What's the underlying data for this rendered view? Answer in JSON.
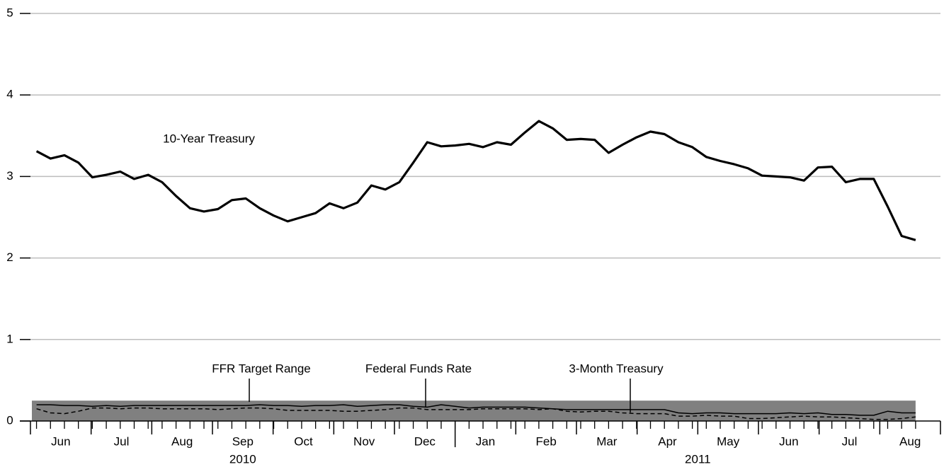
{
  "chart_data": {
    "type": "line",
    "xlim": [
      0,
      15
    ],
    "xticks": [
      0,
      1,
      2,
      3,
      4,
      5,
      6,
      7,
      8,
      9,
      10,
      11,
      12,
      13,
      14,
      15
    ],
    "month_labels": [
      "Jun",
      "Jul",
      "Aug",
      "Sep",
      "Oct",
      "Nov",
      "Dec",
      "Jan",
      "Feb",
      "Mar",
      "Apr",
      "May",
      "Jun",
      "Jul",
      "Aug"
    ],
    "year_labels": [
      "2010",
      "2011"
    ],
    "year_break": 7,
    "ylim": [
      0,
      5
    ],
    "yticks": [
      0,
      1,
      2,
      3,
      4,
      5
    ],
    "grid": true,
    "grid_color": "#bdbdbd",
    "band": {
      "name": "FFR Target Range",
      "range": [
        0,
        0.25
      ],
      "color": "#808080"
    },
    "x": [
      0.1,
      0.33,
      0.56,
      0.79,
      1.02,
      1.25,
      1.48,
      1.71,
      1.94,
      2.17,
      2.4,
      2.63,
      2.86,
      3.09,
      3.32,
      3.55,
      3.78,
      4.01,
      4.24,
      4.47,
      4.7,
      4.93,
      5.16,
      5.39,
      5.62,
      5.85,
      6.08,
      6.31,
      6.54,
      6.77,
      7.0,
      7.23,
      7.46,
      7.69,
      7.92,
      8.15,
      8.38,
      8.61,
      8.84,
      9.07,
      9.3,
      9.53,
      9.76,
      9.99,
      10.22,
      10.45,
      10.68,
      10.91,
      11.14,
      11.37,
      11.6,
      11.83,
      12.06,
      12.29,
      12.52,
      12.75,
      12.98,
      13.21,
      13.44,
      13.67,
      13.9,
      14.13,
      14.36,
      14.59
    ],
    "series": [
      {
        "name": "10-Year Treasury",
        "color": "#000000",
        "width": 3.2,
        "dashed": false,
        "values": [
          3.31,
          3.22,
          3.26,
          3.17,
          2.99,
          3.02,
          3.06,
          2.97,
          3.02,
          2.93,
          2.76,
          2.61,
          2.57,
          2.6,
          2.71,
          2.73,
          2.61,
          2.52,
          2.45,
          2.5,
          2.55,
          2.67,
          2.61,
          2.68,
          2.89,
          2.84,
          2.93,
          3.17,
          3.42,
          3.37,
          3.38,
          3.4,
          3.36,
          3.42,
          3.39,
          3.54,
          3.68,
          3.59,
          3.45,
          3.46,
          3.45,
          3.29,
          3.39,
          3.48,
          3.55,
          3.52,
          3.42,
          3.36,
          3.24,
          3.19,
          3.15,
          3.1,
          3.01,
          3.0,
          2.99,
          2.95,
          3.11,
          3.12,
          2.93,
          2.97,
          2.97,
          2.63,
          2.27,
          2.22
        ]
      },
      {
        "name": "Federal Funds Rate",
        "color": "#000000",
        "width": 1.5,
        "dashed": false,
        "values": [
          0.2,
          0.2,
          0.19,
          0.19,
          0.18,
          0.19,
          0.18,
          0.19,
          0.19,
          0.19,
          0.19,
          0.19,
          0.19,
          0.19,
          0.19,
          0.19,
          0.2,
          0.19,
          0.19,
          0.18,
          0.19,
          0.19,
          0.2,
          0.18,
          0.19,
          0.2,
          0.2,
          0.18,
          0.17,
          0.2,
          0.18,
          0.16,
          0.17,
          0.17,
          0.17,
          0.17,
          0.16,
          0.15,
          0.14,
          0.14,
          0.14,
          0.14,
          0.14,
          0.14,
          0.14,
          0.14,
          0.1,
          0.09,
          0.1,
          0.1,
          0.09,
          0.09,
          0.09,
          0.09,
          0.1,
          0.09,
          0.1,
          0.08,
          0.08,
          0.07,
          0.07,
          0.12,
          0.1,
          0.1
        ]
      },
      {
        "name": "3-Month Treasury",
        "color": "#000000",
        "width": 1.5,
        "dashed": true,
        "values": [
          0.15,
          0.1,
          0.09,
          0.12,
          0.16,
          0.16,
          0.15,
          0.16,
          0.16,
          0.15,
          0.15,
          0.15,
          0.15,
          0.14,
          0.15,
          0.16,
          0.16,
          0.15,
          0.13,
          0.13,
          0.13,
          0.13,
          0.12,
          0.12,
          0.13,
          0.14,
          0.16,
          0.16,
          0.14,
          0.14,
          0.14,
          0.14,
          0.15,
          0.15,
          0.15,
          0.15,
          0.14,
          0.15,
          0.12,
          0.11,
          0.12,
          0.12,
          0.1,
          0.09,
          0.09,
          0.09,
          0.06,
          0.06,
          0.07,
          0.06,
          0.06,
          0.03,
          0.03,
          0.04,
          0.05,
          0.06,
          0.05,
          0.05,
          0.04,
          0.03,
          0.02,
          0.02,
          0.03,
          0.05
        ]
      }
    ]
  }
}
